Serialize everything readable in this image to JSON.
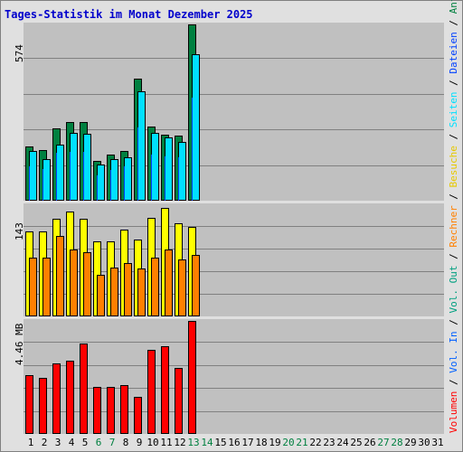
{
  "title": "Tages-Statistik im Monat Dezember 2025",
  "legend": {
    "anfragen": "Anfragen",
    "dateien": "Dateien",
    "seiten": "Seiten",
    "besuche": "Besuche",
    "rechner": "Rechner",
    "vol_out": "Vol. Out",
    "vol_in": "Vol. In",
    "volumen": "Volumen",
    "sep": " / "
  },
  "colors": {
    "anfragen": "#008040",
    "dateien": "#0040ff",
    "seiten": "#00e0ff",
    "besuche": "#ffff00",
    "rechner": "#ff8000",
    "vol_out": "#00a080",
    "vol_in": "#0060ff",
    "volumen": "#ff0000",
    "weekday": "#000000",
    "weekend": "#008040",
    "background": "#c0c0c0",
    "grid": "#808080"
  },
  "x_labels": [
    "1",
    "2",
    "3",
    "4",
    "5",
    "6",
    "7",
    "8",
    "9",
    "10",
    "11",
    "12",
    "13",
    "14",
    "15",
    "16",
    "17",
    "18",
    "19",
    "20",
    "21",
    "22",
    "23",
    "24",
    "25",
    "26",
    "27",
    "28",
    "29",
    "30",
    "31"
  ],
  "weekend_days": [
    6,
    7,
    13,
    14,
    20,
    21,
    27,
    28
  ],
  "chart_data": [
    {
      "type": "bar",
      "title": "Tages-Statistik im Monat Dezember 2025",
      "ymax_label": "574",
      "ylim": [
        0,
        574
      ],
      "series": [
        {
          "name": "Anfragen",
          "values": [
            178,
            166,
            235,
            255,
            255,
            129,
            150,
            162,
            398,
            240,
            215,
            213,
            574,
            0,
            0,
            0,
            0,
            0,
            0,
            0,
            0,
            0,
            0,
            0,
            0,
            0,
            0,
            0,
            0,
            0,
            0
          ]
        },
        {
          "name": "Dateien",
          "values": [
            111,
            103,
            155,
            159,
            159,
            81,
            100,
            111,
            237,
            150,
            145,
            141,
            335,
            0,
            0,
            0,
            0,
            0,
            0,
            0,
            0,
            0,
            0,
            0,
            0,
            0,
            0,
            0,
            0,
            0,
            0
          ]
        },
        {
          "name": "Seiten",
          "values": [
            162,
            134,
            183,
            222,
            218,
            119,
            136,
            141,
            357,
            222,
            206,
            190,
            478,
            0,
            0,
            0,
            0,
            0,
            0,
            0,
            0,
            0,
            0,
            0,
            0,
            0,
            0,
            0,
            0,
            0,
            0
          ]
        }
      ]
    },
    {
      "type": "bar",
      "ymax_label": "143",
      "ylim": [
        0,
        143
      ],
      "series": [
        {
          "name": "Besuche",
          "values": [
            109,
            109,
            126,
            135,
            126,
            96,
            96,
            112,
            99,
            127,
            139,
            120,
            115,
            0,
            0,
            0,
            0,
            0,
            0,
            0,
            0,
            0,
            0,
            0,
            0,
            0,
            0,
            0,
            0,
            0,
            0
          ]
        },
        {
          "name": "Rechner",
          "values": [
            76,
            75,
            103,
            86,
            82,
            54,
            63,
            69,
            62,
            75,
            86,
            73,
            79,
            0,
            0,
            0,
            0,
            0,
            0,
            0,
            0,
            0,
            0,
            0,
            0,
            0,
            0,
            0,
            0,
            0,
            0
          ]
        }
      ]
    },
    {
      "type": "bar",
      "ymax_label": "4.46 MB",
      "ylim": [
        0,
        4.46
      ],
      "unit": "MB",
      "series": [
        {
          "name": "Volumen",
          "values": [
            2.32,
            2.21,
            2.77,
            2.89,
            3.57,
            1.87,
            1.87,
            1.91,
            1.47,
            3.31,
            3.47,
            2.6,
            4.46,
            0,
            0,
            0,
            0,
            0,
            0,
            0,
            0,
            0,
            0,
            0,
            0,
            0,
            0,
            0,
            0,
            0,
            0
          ]
        }
      ]
    }
  ]
}
